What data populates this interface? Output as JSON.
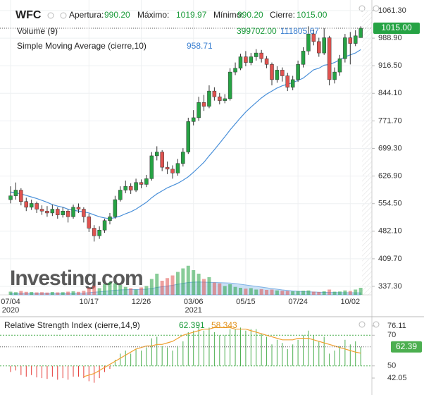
{
  "chart_data": [
    {
      "type": "candlestick",
      "title": "WFC",
      "info": [
        {
          "label": "Apertura:",
          "value": "990.20"
        },
        {
          "label": "Máximo:",
          "value": "1019.97"
        },
        {
          "label": "Mínimo:",
          "value": "990.20"
        },
        {
          "label": "Cierre:",
          "value": "1015.00"
        }
      ],
      "categories": [
        "07/04",
        null,
        null,
        null,
        null,
        null,
        null,
        null,
        null,
        null,
        null,
        null,
        null,
        null,
        null,
        "10/17",
        null,
        null,
        null,
        null,
        null,
        null,
        null,
        null,
        null,
        "12/26",
        null,
        null,
        null,
        null,
        null,
        null,
        null,
        null,
        null,
        "03/06",
        null,
        null,
        null,
        null,
        null,
        null,
        null,
        null,
        null,
        "05/15",
        null,
        null,
        null,
        null,
        null,
        null,
        null,
        null,
        null,
        "07/24",
        null,
        null,
        null,
        null,
        null,
        null,
        null,
        null,
        null,
        "10/02",
        null,
        null
      ],
      "years": [
        "2020",
        null,
        null,
        null,
        null,
        null,
        null,
        null,
        null,
        null,
        null,
        null,
        null,
        null,
        null,
        null,
        null,
        null,
        null,
        null,
        null,
        null,
        null,
        null,
        null,
        null,
        null,
        null,
        null,
        null,
        null,
        null,
        null,
        null,
        null,
        "2021",
        null,
        null,
        null,
        null,
        null,
        null,
        null,
        null,
        null,
        null,
        null,
        null,
        null,
        null,
        null,
        null,
        null,
        null,
        null,
        null,
        null,
        null,
        null,
        null,
        null,
        null,
        null,
        null,
        null,
        null,
        null,
        null
      ],
      "open": [
        565,
        575,
        590,
        560,
        545,
        555,
        540,
        535,
        530,
        540,
        525,
        535,
        520,
        545,
        540,
        520,
        490,
        470,
        485,
        510,
        520,
        565,
        590,
        600,
        590,
        610,
        605,
        620,
        680,
        690,
        650,
        645,
        635,
        660,
        690,
        770,
        780,
        820,
        810,
        850,
        835,
        825,
        830,
        900,
        910,
        940,
        925,
        940,
        950,
        935,
        920,
        880,
        905,
        890,
        860,
        880,
        920,
        955,
        1000,
        980,
        950,
        990,
        880,
        900,
        935,
        990,
        975,
        990.2
      ],
      "high": [
        600,
        610,
        595,
        570,
        565,
        560,
        550,
        548,
        552,
        545,
        545,
        540,
        552,
        555,
        545,
        528,
        498,
        495,
        515,
        530,
        575,
        600,
        615,
        608,
        620,
        618,
        630,
        690,
        705,
        695,
        665,
        655,
        672,
        700,
        780,
        800,
        835,
        840,
        865,
        860,
        845,
        842,
        910,
        925,
        948,
        955,
        950,
        960,
        958,
        942,
        925,
        915,
        912,
        898,
        890,
        930,
        965,
        1020,
        1012,
        990,
        1015,
        995,
        912,
        945,
        1000,
        1005,
        1010,
        1019.97
      ],
      "low": [
        555,
        565,
        550,
        535,
        538,
        530,
        525,
        520,
        522,
        515,
        518,
        505,
        515,
        530,
        505,
        480,
        455,
        462,
        478,
        500,
        515,
        560,
        582,
        580,
        585,
        595,
        598,
        615,
        668,
        640,
        632,
        620,
        628,
        652,
        685,
        760,
        772,
        798,
        805,
        825,
        815,
        818,
        825,
        892,
        905,
        915,
        918,
        930,
        925,
        910,
        865,
        872,
        875,
        850,
        852,
        874,
        912,
        945,
        970,
        940,
        945,
        865,
        870,
        890,
        925,
        920,
        968,
        990.2
      ],
      "close": [
        575,
        590,
        560,
        545,
        555,
        540,
        535,
        530,
        540,
        525,
        535,
        520,
        545,
        540,
        520,
        490,
        470,
        485,
        510,
        520,
        565,
        590,
        600,
        590,
        610,
        605,
        620,
        680,
        690,
        650,
        645,
        635,
        660,
        690,
        770,
        780,
        820,
        810,
        850,
        835,
        825,
        830,
        900,
        910,
        940,
        925,
        940,
        950,
        935,
        920,
        880,
        905,
        890,
        860,
        880,
        920,
        955,
        1000,
        980,
        950,
        990,
        880,
        900,
        935,
        990,
        975,
        995,
        1015.0
      ],
      "up_color": "#26a344",
      "down_color": "#e0524f",
      "ylim": [
        337.3,
        1061.3
      ],
      "yticks": [
        {
          "value": 337.3,
          "label": "337.30"
        },
        {
          "value": 409.7,
          "label": "409.70"
        },
        {
          "value": 482.1,
          "label": "482.10"
        },
        {
          "value": 554.5,
          "label": "554.50"
        },
        {
          "value": 626.9,
          "label": "626.90"
        },
        {
          "value": 699.3,
          "label": "699.30"
        },
        {
          "value": 771.7,
          "label": "771.70"
        },
        {
          "value": 844.1,
          "label": "844.10"
        },
        {
          "value": 916.5,
          "label": "916.50"
        },
        {
          "value": 988.9,
          "label": "988.90"
        },
        {
          "value": 1061.3,
          "label": "1061.30"
        }
      ],
      "grid": true,
      "last_label": "1015.00",
      "watermark": "Investing.com",
      "volume": {
        "name": "Volume (9)",
        "value_label": "399702.00",
        "avg_label": "111805.67",
        "avg_color": "#a9cdf0",
        "values": [
          180000,
          150000,
          220000,
          170000,
          160000,
          140000,
          150000,
          130000,
          160000,
          140000,
          150000,
          180000,
          200000,
          170000,
          230000,
          400000,
          520000,
          380000,
          600000,
          700000,
          650000,
          560000,
          450000,
          380000,
          300000,
          420000,
          500000,
          900000,
          1200000,
          800000,
          950000,
          1100000,
          1300000,
          1500000,
          1650000,
          1400000,
          1200000,
          900000,
          1000000,
          700000,
          650000,
          500000,
          600000,
          450000,
          400000,
          350000,
          380000,
          300000,
          320000,
          280000,
          300000,
          250000,
          230000,
          220000,
          200000,
          210000,
          230000,
          250000,
          180000,
          160000,
          200000,
          300000,
          180000,
          190000,
          250000,
          220000,
          300000,
          399702
        ],
        "avg_values": [
          90000,
          88000,
          92000,
          90000,
          87000,
          85000,
          84000,
          82000,
          84000,
          83000,
          85000,
          88000,
          92000,
          95000,
          100000,
          120000,
          150000,
          170000,
          200000,
          230000,
          260000,
          280000,
          290000,
          300000,
          300000,
          310000,
          320000,
          360000,
          420000,
          460000,
          500000,
          540000,
          600000,
          650000,
          700000,
          720000,
          730000,
          720000,
          710000,
          700000,
          690000,
          680000,
          670000,
          640000,
          600000,
          560000,
          520000,
          480000,
          440000,
          400000,
          360000,
          320000,
          280000,
          250000,
          220000,
          200000,
          180000,
          170000,
          160000,
          150000,
          140000,
          135000,
          130000,
          125000,
          120000,
          118000,
          115000,
          111805.67
        ],
        "ylim": [
          0,
          2200000
        ]
      },
      "sma": {
        "name": "Simple Moving Average (cierre,10)",
        "value_label": "958.71",
        "color": "#4a90d9",
        "values": [
          585,
          583,
          580,
          576,
          572,
          568,
          563,
          558,
          552,
          548,
          545,
          540,
          537,
          535,
          533,
          530,
          525,
          520,
          517,
          515,
          518,
          522,
          528,
          533,
          540,
          549,
          558,
          570,
          580,
          588,
          596,
          602,
          608,
          616,
          625,
          637,
          650,
          663,
          680,
          696,
          713,
          730,
          748,
          764,
          780,
          795,
          808,
          820,
          832,
          842,
          850,
          858,
          864,
          868,
          872,
          878,
          884,
          895,
          906,
          910,
          918,
          920,
          925,
          932,
          940,
          945,
          950,
          958.71
        ]
      }
    },
    {
      "type": "rsi",
      "title": "Relative Strength Index (cierre,14,9)",
      "values": [
        46,
        47,
        44,
        43,
        44,
        42.5,
        42,
        41.5,
        43,
        41,
        42,
        41,
        43,
        43,
        42,
        40,
        39,
        42,
        46,
        48,
        54,
        58,
        60,
        58,
        61,
        60,
        62,
        68,
        69,
        63,
        62,
        60,
        63,
        66,
        72,
        73,
        75,
        73,
        75,
        72,
        70,
        70,
        74,
        74,
        75,
        73,
        74,
        74,
        71,
        69,
        64,
        67,
        65,
        61,
        64,
        67,
        70,
        73,
        70,
        66,
        69,
        58,
        60,
        63,
        67,
        64,
        66,
        62.391
      ],
      "value_label": "62.391",
      "signal_values": [
        null,
        null,
        null,
        null,
        null,
        null,
        null,
        null,
        null,
        null,
        null,
        null,
        null,
        null,
        43,
        44,
        45,
        47,
        49,
        51,
        53,
        55,
        57,
        59,
        61,
        62,
        63,
        63,
        64,
        64,
        65,
        66,
        68,
        70,
        71,
        72,
        73,
        74,
        74,
        75,
        75,
        75,
        75,
        74,
        74,
        74,
        73,
        72,
        71,
        70,
        69,
        68,
        67,
        67,
        67,
        68,
        68,
        68,
        67,
        66,
        65,
        64,
        63,
        62,
        61,
        60,
        59,
        58.343
      ],
      "signal_label": "58.343",
      "up_color": "#4caf50",
      "down_color": "#e53935",
      "signal_color": "#f0a030",
      "bar_base": 50,
      "ylim": [
        42.05,
        76.11
      ],
      "yticks": [
        {
          "value": 42.05,
          "label": "42.05"
        },
        50,
        70,
        {
          "value": 76.11,
          "label": "76.11"
        }
      ],
      "last_label": "62.39"
    }
  ]
}
